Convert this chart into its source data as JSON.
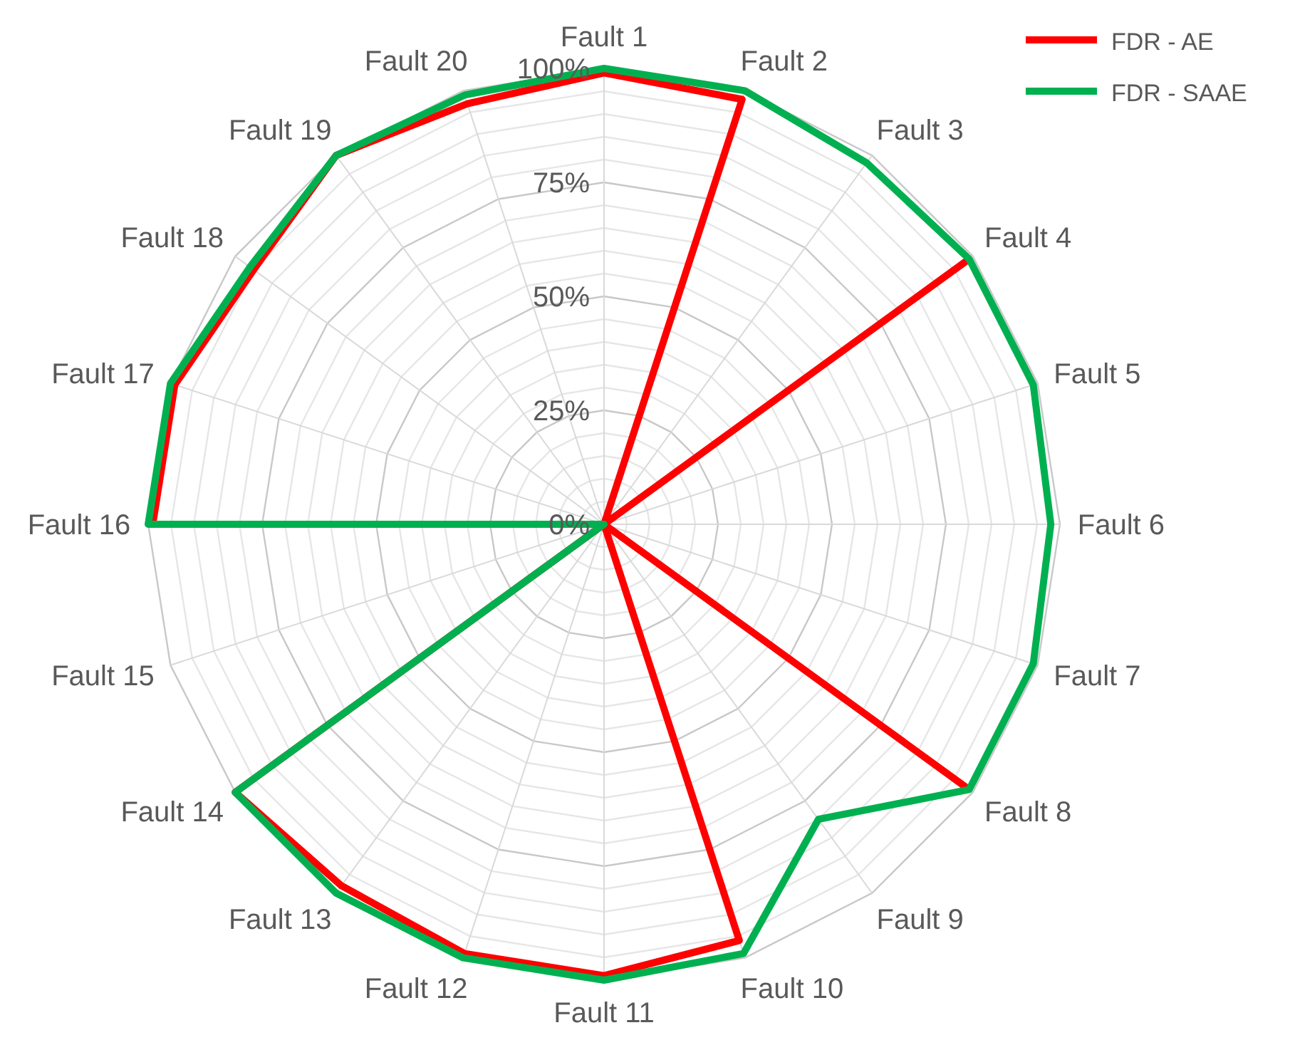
{
  "chart_data": {
    "type": "radar",
    "categories": [
      "Fault 1",
      "Fault 2",
      "Fault 3",
      "Fault 4",
      "Fault 5",
      "Fault 6",
      "Fault 7",
      "Fault 8",
      "Fault 9",
      "Fault 10",
      "Fault 11",
      "Fault 12",
      "Fault 13",
      "Fault 14",
      "Fault 15",
      "Fault 16",
      "Fault 17",
      "Fault 18",
      "Fault 19",
      "Fault 20"
    ],
    "series": [
      {
        "name": "FDR - AE",
        "color": "#ff0000",
        "values": [
          99,
          98,
          0,
          98,
          0,
          0,
          0,
          98,
          0,
          96,
          99,
          99,
          98,
          100,
          0,
          99,
          99,
          95,
          100,
          97
        ]
      },
      {
        "name": "FDR - SAAE",
        "color": "#00b050",
        "values": [
          100,
          100,
          98,
          99,
          99,
          98,
          99,
          99,
          80,
          99,
          100,
          100,
          100,
          100,
          0,
          100,
          100,
          96,
          100,
          99
        ]
      }
    ],
    "ylim": [
      0,
      100
    ],
    "yticks": [
      {
        "value": 0,
        "label": "0%"
      },
      {
        "value": 25,
        "label": "25%"
      },
      {
        "value": 50,
        "label": "50%"
      },
      {
        "value": 75,
        "label": "75%"
      },
      {
        "value": 100,
        "label": "100%"
      }
    ],
    "grid": true,
    "legend": "top right",
    "line_style": "solid",
    "marker": "none"
  }
}
